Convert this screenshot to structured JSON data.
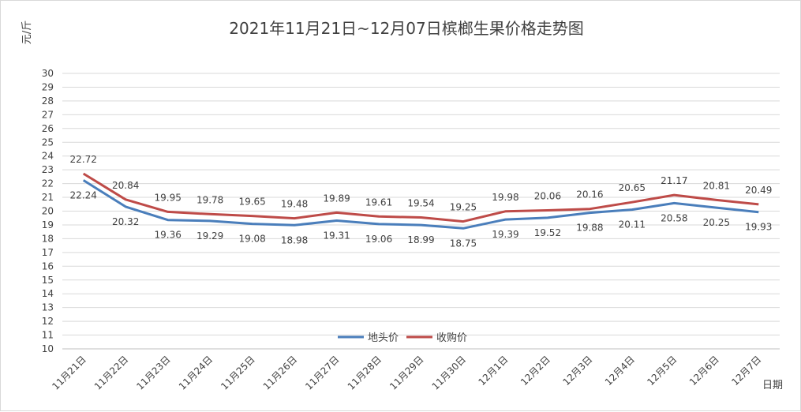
{
  "chart_data": {
    "type": "line",
    "title": "2021年11月21日~12月07日槟榔生果价格走势图",
    "ylabel": "元/斤",
    "xlabel": "日期",
    "ylim": [
      10,
      30
    ],
    "yticks": [
      10,
      11,
      12,
      13,
      14,
      15,
      16,
      17,
      18,
      19,
      20,
      21,
      22,
      23,
      24,
      25,
      26,
      27,
      28,
      29,
      30
    ],
    "grid": true,
    "legend": "center",
    "categories": [
      "11月21日",
      "11月22日",
      "11月23日",
      "11月24日",
      "11月25日",
      "11月26日",
      "11月27日",
      "11月28日",
      "11月29日",
      "11月30日",
      "12月1日",
      "12月2日",
      "12月3日",
      "12月4日",
      "12月5日",
      "12月6日",
      "12月7日"
    ],
    "series": [
      {
        "name": "地头价",
        "color": "#4a7ebb",
        "values": [
          22.24,
          20.32,
          19.36,
          19.29,
          19.08,
          18.98,
          19.31,
          19.06,
          18.99,
          18.75,
          19.39,
          19.52,
          19.88,
          20.11,
          20.58,
          20.25,
          19.93
        ]
      },
      {
        "name": "收购价",
        "color": "#be4b48",
        "values": [
          22.72,
          20.84,
          19.95,
          19.78,
          19.65,
          19.48,
          19.89,
          19.61,
          19.54,
          19.25,
          19.98,
          20.06,
          20.16,
          20.65,
          21.17,
          20.81,
          20.49
        ]
      }
    ]
  }
}
